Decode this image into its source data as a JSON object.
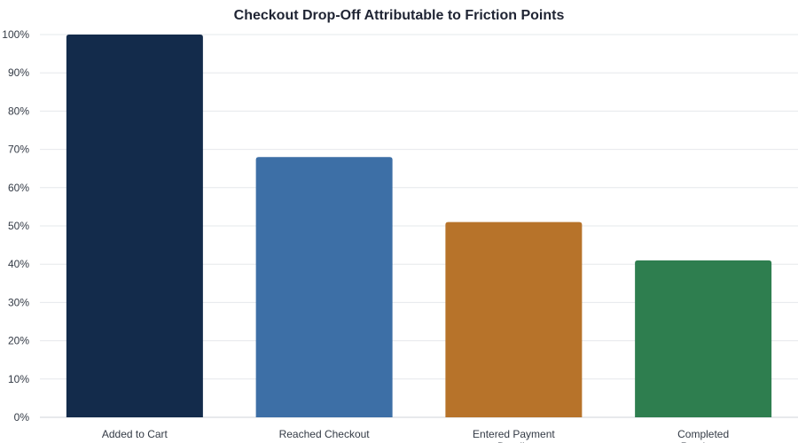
{
  "chart_data": {
    "type": "bar",
    "title": "Checkout Drop-Off Attributable to Friction Points",
    "xlabel": "",
    "ylabel": "",
    "categories": [
      "Added to Cart",
      "Reached Checkout",
      "Entered Payment Details",
      "Completed Purchase"
    ],
    "values": [
      100,
      68,
      51,
      41
    ],
    "colors": [
      "#132b4b",
      "#3d6fa6",
      "#b7732a",
      "#2e7e4f"
    ],
    "ylim": [
      0,
      100
    ],
    "y_ticks": [
      "0%",
      "10%",
      "20%",
      "30%",
      "40%",
      "50%",
      "60%",
      "70%",
      "80%",
      "90%",
      "100%"
    ],
    "y_tick_values": [
      0,
      10,
      20,
      30,
      40,
      50,
      60,
      70,
      80,
      90,
      100
    ],
    "grid": true,
    "legend": "none"
  }
}
